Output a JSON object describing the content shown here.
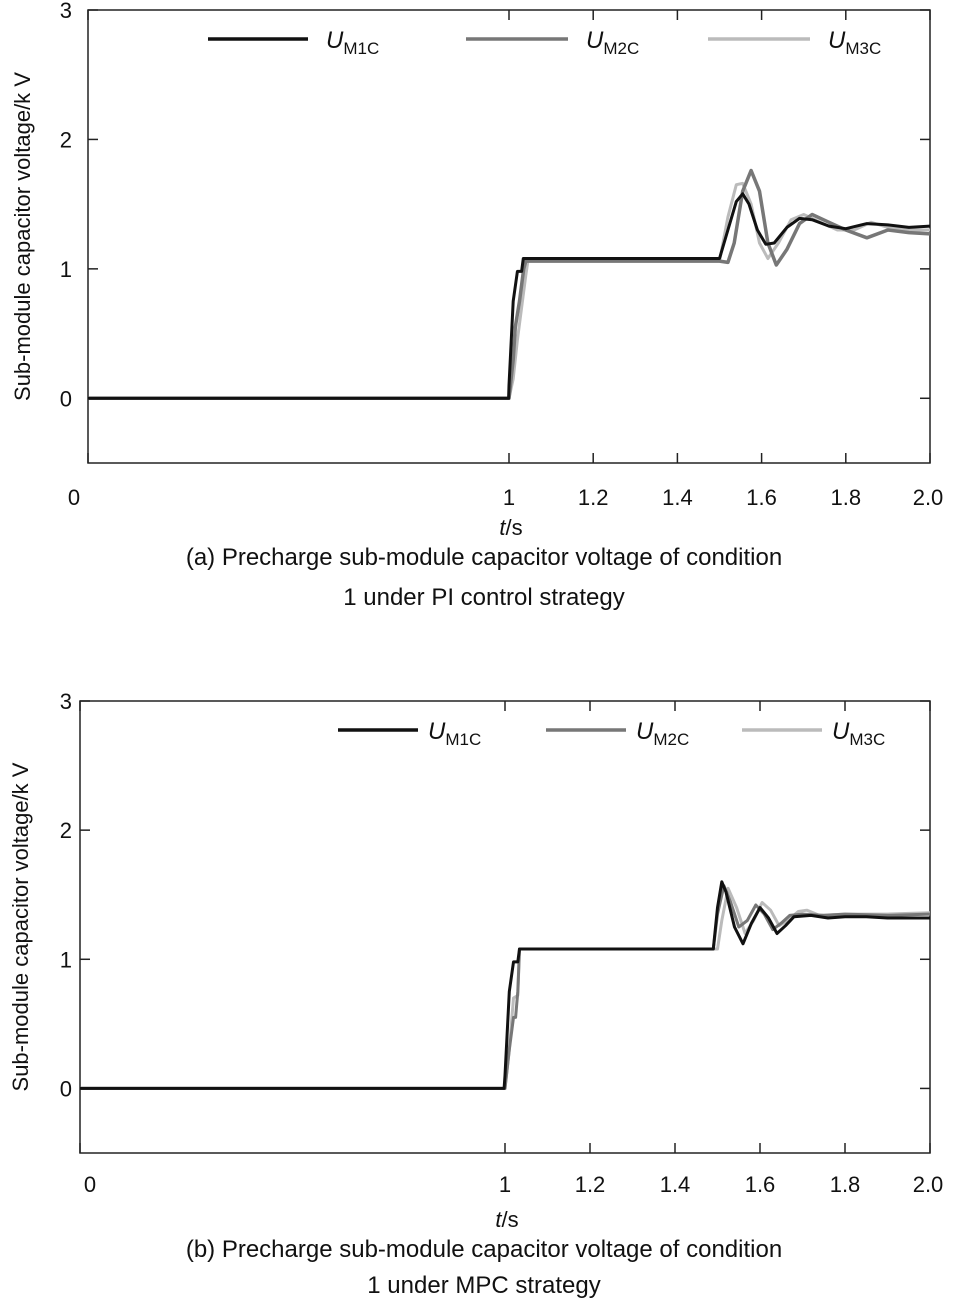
{
  "chart_data": [
    {
      "type": "line",
      "panel": "a",
      "caption_lines": [
        "(a) Precharge sub-module capacitor voltage of condition",
        "1 under PI control strategy"
      ],
      "xlabel": {
        "var": "t",
        "unit": "/s"
      },
      "ylabel": "Sub-module capacitor voltage/k V",
      "xlim": [
        0,
        2.0
      ],
      "ylim": [
        -0.5,
        3
      ],
      "xticks": [
        0,
        1,
        1.2,
        1.4,
        1.6,
        1.8,
        2.0
      ],
      "xtick_labels": [
        "0",
        "1",
        "1.2",
        "1.4",
        "1.6",
        "1.8",
        "2.0"
      ],
      "yticks": [
        0,
        1,
        2,
        3
      ],
      "ytick_labels": [
        "0",
        "1",
        "2",
        "3"
      ],
      "legend": {
        "placement": "top"
      },
      "series": [
        {
          "name": "UM1C",
          "label_main": "U",
          "label_sub": "M1C",
          "color": "#111111",
          "width": 3,
          "x": [
            0,
            0.999,
            1.0,
            1.01,
            1.02,
            1.03,
            1.034,
            1.5,
            1.52,
            1.54,
            1.555,
            1.57,
            1.59,
            1.61,
            1.63,
            1.66,
            1.69,
            1.72,
            1.76,
            1.8,
            1.85,
            1.9,
            1.95,
            2.0
          ],
          "y": [
            0,
            0,
            0.1,
            0.75,
            0.98,
            0.98,
            1.08,
            1.08,
            1.3,
            1.52,
            1.58,
            1.5,
            1.3,
            1.19,
            1.2,
            1.32,
            1.39,
            1.38,
            1.33,
            1.31,
            1.35,
            1.34,
            1.32,
            1.33
          ]
        },
        {
          "name": "UM2C",
          "label_main": "U",
          "label_sub": "M2C",
          "color": "#777777",
          "width": 3.5,
          "x": [
            0,
            1.0,
            1.01,
            1.015,
            1.025,
            1.035,
            1.04,
            1.5,
            1.52,
            1.535,
            1.555,
            1.575,
            1.595,
            1.615,
            1.635,
            1.66,
            1.69,
            1.72,
            1.76,
            1.8,
            1.85,
            1.9,
            1.95,
            2.0
          ],
          "y": [
            0,
            0,
            0.3,
            0.55,
            0.75,
            1.0,
            1.06,
            1.06,
            1.05,
            1.2,
            1.6,
            1.76,
            1.6,
            1.2,
            1.03,
            1.15,
            1.35,
            1.42,
            1.36,
            1.3,
            1.24,
            1.3,
            1.28,
            1.27
          ]
        },
        {
          "name": "UM3C",
          "label_main": "U",
          "label_sub": "M3C",
          "color": "#bbbbbb",
          "width": 3,
          "x": [
            0,
            1.0,
            1.01,
            1.02,
            1.03,
            1.04,
            1.045,
            1.5,
            1.52,
            1.54,
            1.555,
            1.575,
            1.595,
            1.615,
            1.64,
            1.67,
            1.7,
            1.74,
            1.78,
            1.82,
            1.86,
            1.9,
            1.95,
            2.0
          ],
          "y": [
            0,
            0,
            0.15,
            0.45,
            0.7,
            0.95,
            1.06,
            1.06,
            1.4,
            1.65,
            1.66,
            1.5,
            1.2,
            1.08,
            1.2,
            1.38,
            1.42,
            1.36,
            1.3,
            1.3,
            1.36,
            1.32,
            1.3,
            1.3
          ]
        }
      ]
    },
    {
      "type": "line",
      "panel": "b",
      "caption_lines": [
        "(b) Precharge sub-module capacitor voltage of condition",
        "1 under MPC strategy"
      ],
      "xlabel": {
        "var": "t",
        "unit": "/s"
      },
      "ylabel": "Sub-module capacitor voltage/k V",
      "xlim": [
        0,
        2.0
      ],
      "ylim": [
        -0.5,
        3
      ],
      "xticks": [
        0,
        1,
        1.2,
        1.4,
        1.6,
        1.8,
        2.0
      ],
      "xtick_labels": [
        "0",
        "1",
        "1.2",
        "1.4",
        "1.6",
        "1.8",
        "2.0"
      ],
      "yticks": [
        0,
        1,
        2,
        3
      ],
      "ytick_labels": [
        "0",
        "1",
        "2",
        "3"
      ],
      "legend": {
        "placement": "top-right"
      },
      "series": [
        {
          "name": "UM1C",
          "label_main": "U",
          "label_sub": "M1C",
          "color": "#111111",
          "width": 3,
          "x": [
            0,
            0.998,
            1.0,
            1.01,
            1.02,
            1.03,
            1.034,
            1.49,
            1.5,
            1.51,
            1.52,
            1.54,
            1.56,
            1.58,
            1.6,
            1.62,
            1.64,
            1.66,
            1.68,
            1.72,
            1.76,
            1.8,
            1.85,
            1.9,
            1.95,
            2.0
          ],
          "y": [
            0,
            0,
            0.1,
            0.75,
            0.98,
            0.98,
            1.08,
            1.08,
            1.4,
            1.6,
            1.52,
            1.25,
            1.12,
            1.28,
            1.4,
            1.32,
            1.2,
            1.26,
            1.33,
            1.34,
            1.32,
            1.33,
            1.33,
            1.32,
            1.32,
            1.32
          ]
        },
        {
          "name": "UM2C",
          "label_main": "U",
          "label_sub": "M2C",
          "color": "#777777",
          "width": 3,
          "x": [
            0,
            1.0,
            1.01,
            1.02,
            1.025,
            1.03,
            1.034,
            1.49,
            1.5,
            1.515,
            1.53,
            1.55,
            1.57,
            1.59,
            1.61,
            1.63,
            1.65,
            1.67,
            1.7,
            1.75,
            1.8,
            1.9,
            2.0
          ],
          "y": [
            0,
            0,
            0.3,
            0.55,
            0.55,
            0.75,
            1.08,
            1.08,
            1.35,
            1.57,
            1.45,
            1.25,
            1.3,
            1.42,
            1.35,
            1.23,
            1.28,
            1.34,
            1.35,
            1.34,
            1.35,
            1.34,
            1.35
          ]
        },
        {
          "name": "UM3C",
          "label_main": "U",
          "label_sub": "M3C",
          "color": "#bbbbbb",
          "width": 3,
          "x": [
            0,
            1.0,
            1.01,
            1.02,
            1.03,
            1.034,
            1.5,
            1.51,
            1.525,
            1.545,
            1.565,
            1.585,
            1.605,
            1.625,
            1.645,
            1.665,
            1.69,
            1.71,
            1.74,
            1.8,
            1.9,
            2.0
          ],
          "y": [
            0,
            0,
            0.3,
            0.7,
            0.72,
            1.08,
            1.08,
            1.3,
            1.55,
            1.4,
            1.2,
            1.3,
            1.44,
            1.38,
            1.26,
            1.3,
            1.37,
            1.38,
            1.34,
            1.35,
            1.35,
            1.36
          ]
        }
      ]
    }
  ]
}
